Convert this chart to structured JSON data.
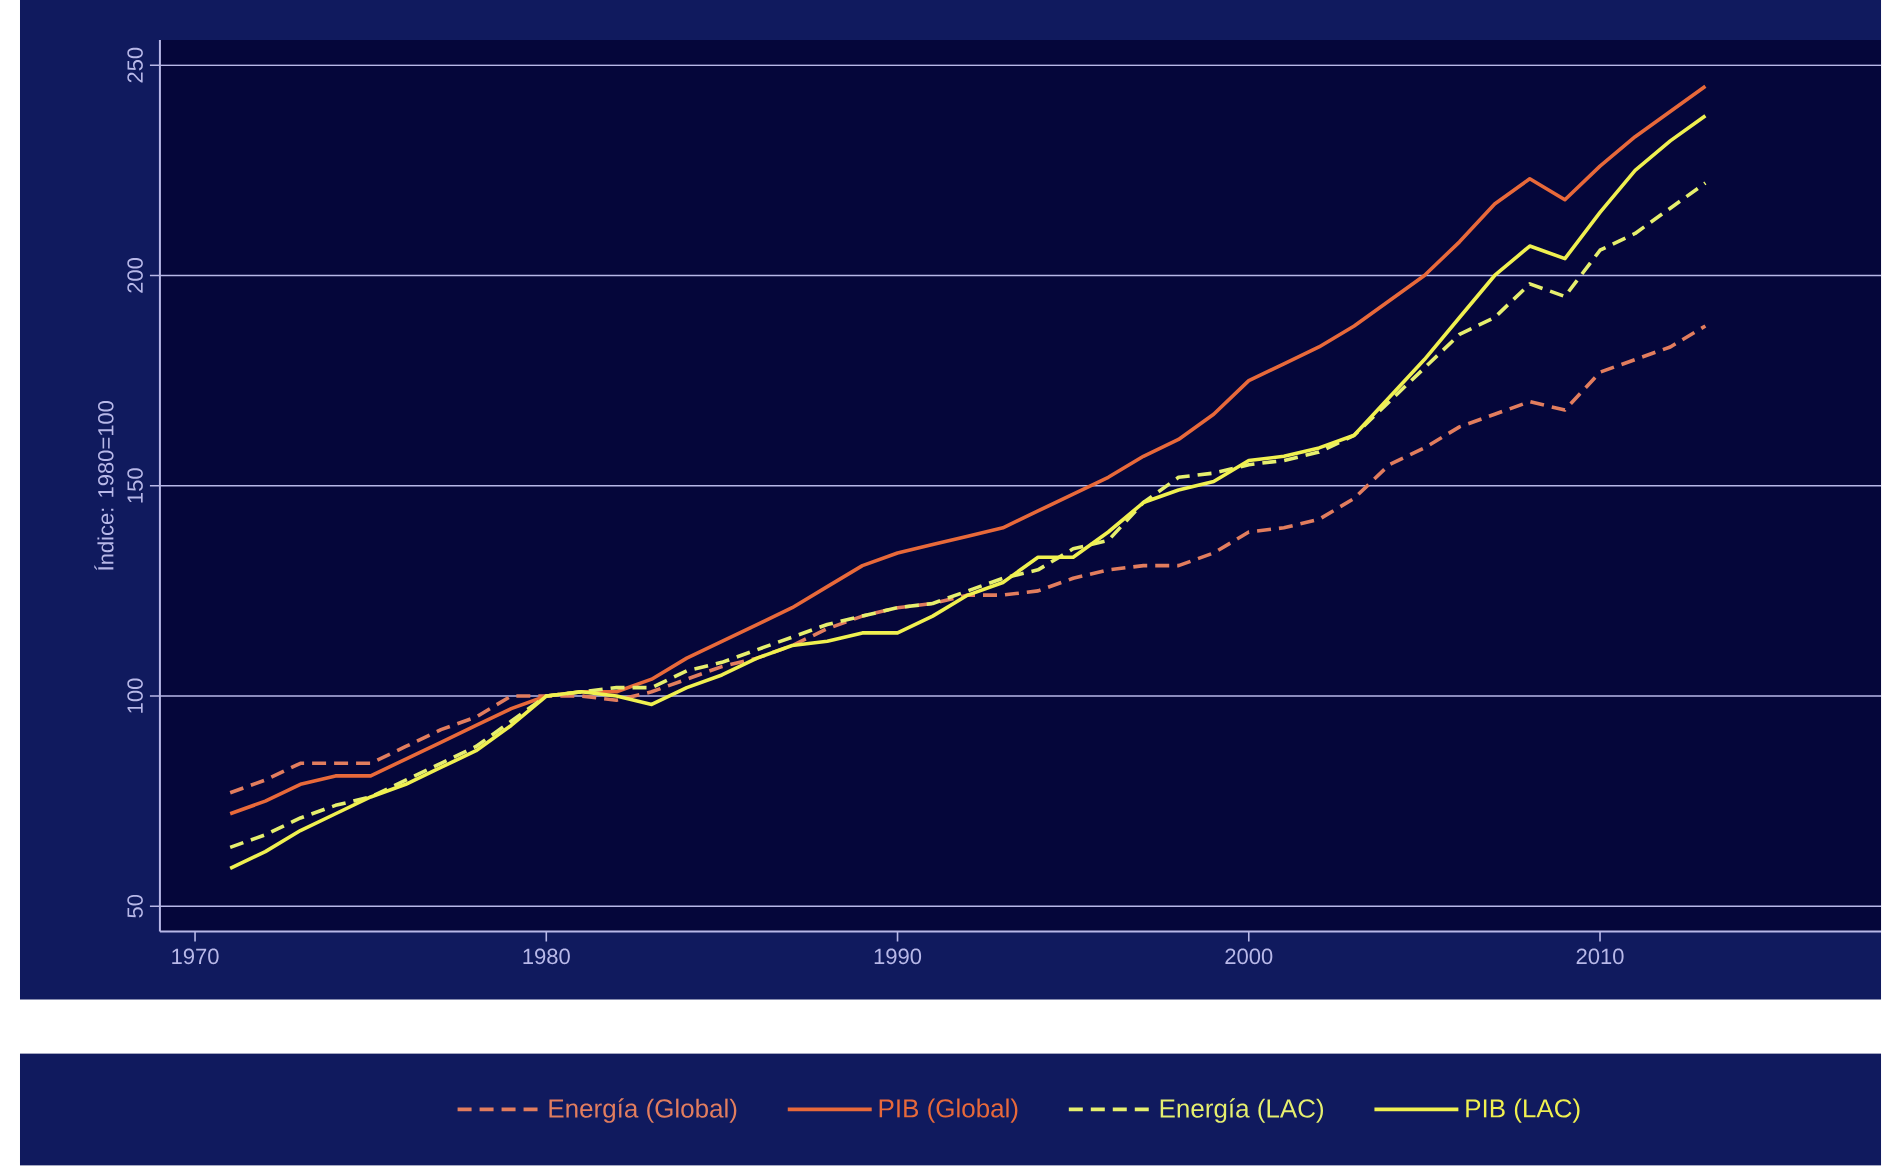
{
  "chart_data": {
    "type": "line",
    "ylabel": "Índice: 1980=100",
    "x": [
      1971,
      1972,
      1973,
      1974,
      1975,
      1976,
      1977,
      1978,
      1979,
      1980,
      1981,
      1982,
      1983,
      1984,
      1985,
      1986,
      1987,
      1988,
      1989,
      1990,
      1991,
      1992,
      1993,
      1994,
      1995,
      1996,
      1997,
      1998,
      1999,
      2000,
      2001,
      2002,
      2003,
      2004,
      2005,
      2006,
      2007,
      2008,
      2009,
      2010,
      2011,
      2012,
      2013
    ],
    "series": [
      {
        "name": "Energía (Global)",
        "color": "#e27d5e",
        "line_style": "dashed",
        "values": [
          77,
          80,
          84,
          84,
          84,
          88,
          92,
          95,
          100,
          100,
          100,
          99,
          101,
          104,
          107,
          109,
          112,
          116,
          119,
          121,
          122,
          124,
          124,
          125,
          128,
          130,
          131,
          131,
          134,
          139,
          140,
          142,
          147,
          155,
          159,
          164,
          167,
          170,
          168,
          177,
          180,
          183,
          188
        ]
      },
      {
        "name": "PIB (Global)",
        "color": "#e8693a",
        "line_style": "solid",
        "values": [
          72,
          75,
          79,
          81,
          81,
          85,
          89,
          93,
          97,
          100,
          101,
          101,
          104,
          109,
          113,
          117,
          121,
          126,
          131,
          134,
          136,
          138,
          140,
          144,
          148,
          152,
          157,
          161,
          167,
          175,
          179,
          183,
          188,
          194,
          200,
          208,
          217,
          223,
          218,
          226,
          233,
          239,
          245
        ]
      },
      {
        "name": "Energía (LAC)",
        "color": "#e6ef6e",
        "line_style": "dashed",
        "values": [
          64,
          67,
          71,
          74,
          76,
          80,
          84,
          88,
          94,
          100,
          101,
          102,
          102,
          106,
          108,
          111,
          114,
          117,
          119,
          121,
          122,
          125,
          128,
          130,
          135,
          137,
          146,
          152,
          153,
          155,
          156,
          158,
          162,
          170,
          178,
          186,
          190,
          198,
          195,
          206,
          210,
          216,
          222
        ]
      },
      {
        "name": "PIB (LAC)",
        "color": "#f0f050",
        "line_style": "solid",
        "values": [
          59,
          63,
          68,
          72,
          76,
          79,
          83,
          87,
          93,
          100,
          101,
          100,
          98,
          102,
          105,
          109,
          112,
          113,
          115,
          115,
          119,
          124,
          127,
          133,
          133,
          139,
          146,
          149,
          151,
          156,
          157,
          159,
          162,
          171,
          180,
          190,
          200,
          207,
          204,
          215,
          225,
          232,
          238
        ]
      }
    ],
    "xlim": [
      1969,
      2018
    ],
    "ylim": [
      44,
      256
    ],
    "xticks": [
      1970,
      1980,
      1990,
      2000,
      2010
    ],
    "yticks": [
      50,
      100,
      150,
      200,
      250
    ],
    "grid": "y",
    "legend": "bottom"
  }
}
